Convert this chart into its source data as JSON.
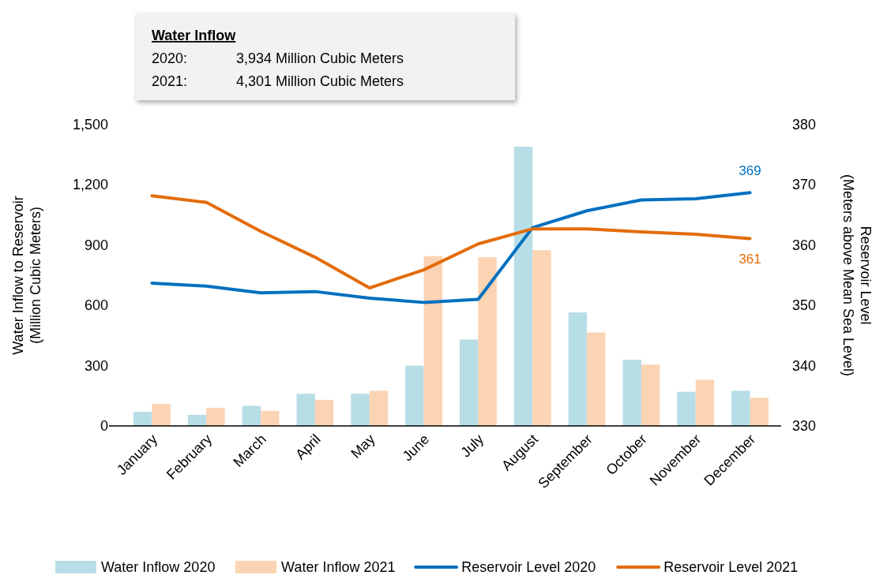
{
  "chart_data": {
    "type": "bar",
    "categories": [
      "January",
      "February",
      "March",
      "April",
      "May",
      "June",
      "July",
      "August",
      "September",
      "October",
      "November",
      "December"
    ],
    "series": [
      {
        "name": "Water Inflow 2020",
        "color": "#b7dde6",
        "values": [
          70,
          55,
          100,
          160,
          160,
          300,
          430,
          1390,
          565,
          330,
          170,
          175
        ]
      },
      {
        "name": "Water Inflow 2021",
        "color": "#fbd4b4",
        "values": [
          110,
          90,
          75,
          130,
          175,
          845,
          840,
          875,
          465,
          305,
          230,
          140
        ]
      },
      {
        "name": "Reservoir Level 2020",
        "type": "line",
        "axis": "y2",
        "color": "#0070c0",
        "values": [
          353.7,
          353.2,
          352.1,
          352.3,
          351.2,
          350.5,
          351.0,
          362.9,
          365.7,
          367.5,
          367.7,
          368.7
        ],
        "value_labels": [
          null,
          null,
          null,
          null,
          null,
          null,
          null,
          null,
          null,
          null,
          null,
          "369"
        ]
      },
      {
        "name": "Reservoir Level 2021",
        "type": "line",
        "axis": "y2",
        "color": "#e36c0a",
        "values": [
          368.2,
          367.1,
          362.3,
          358.0,
          352.9,
          355.9,
          360.2,
          362.7,
          362.7,
          362.2,
          361.8,
          361.1
        ],
        "value_labels": [
          null,
          null,
          null,
          null,
          null,
          null,
          null,
          null,
          null,
          null,
          null,
          "361"
        ]
      }
    ],
    "ylabel": "Water Inflow to Reservoir\n(Million Cubic Meters)",
    "y2label": "Reservoir Level\n(Meters above Mean Sea Level)",
    "ylim": [
      0,
      1500
    ],
    "yticks": [
      0,
      300,
      600,
      900,
      {
        "value": 1200,
        "label": "1,200"
      },
      {
        "value": 1500,
        "label": "1,500"
      }
    ],
    "y2lim": [
      330,
      380
    ],
    "y2ticks": [
      330,
      340,
      350,
      360,
      370,
      380
    ],
    "annotations": [
      "Water Inflow",
      "2020: 3,934 Million Cubic Meters",
      "2021: 4,301 Million Cubic Meters"
    ],
    "legend": "bottom",
    "grid": false
  }
}
